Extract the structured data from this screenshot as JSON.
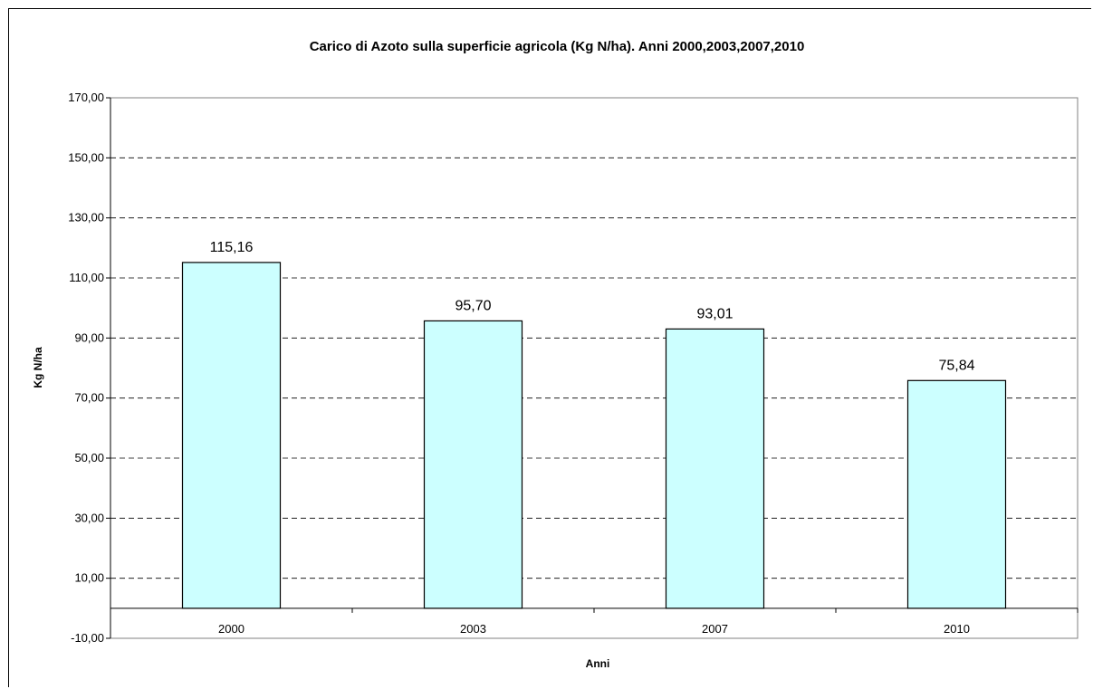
{
  "chart_data": {
    "type": "bar",
    "title": "Carico di Azoto sulla superficie agricola (Kg N/ha). Anni 2000,2003,2007,2010",
    "xlabel": "Anni",
    "ylabel": "Kg N/ha",
    "categories": [
      "2000",
      "2003",
      "2007",
      "2010"
    ],
    "values": [
      115.16,
      95.7,
      93.01,
      75.84
    ],
    "value_labels": [
      "115,16",
      "95,70",
      "93,01",
      "75,84"
    ],
    "ylim": [
      -10,
      170
    ],
    "yticks": [
      -10,
      10,
      30,
      50,
      70,
      90,
      110,
      130,
      150,
      170
    ],
    "ytick_labels": [
      "-10,00",
      "10,00",
      "30,00",
      "50,00",
      "70,00",
      "90,00",
      "110,00",
      "130,00",
      "150,00",
      "170,00"
    ],
    "grid": "horizontal dashed",
    "legend": "none",
    "colors": {
      "bar_fill": "#ccffff",
      "bar_stroke": "#000000",
      "grid": "#000000"
    }
  }
}
